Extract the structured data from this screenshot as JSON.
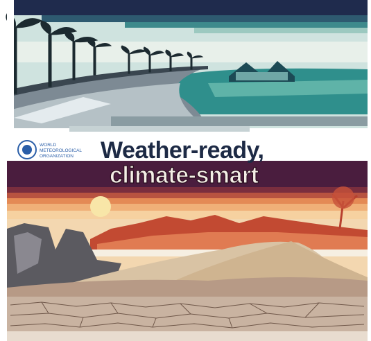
{
  "logo": {
    "lines": [
      "WORLD",
      "METEOROLOGICAL",
      "ORGANIZATION"
    ]
  },
  "title": {
    "line1": "Weather-ready,",
    "line2": "climate-smart"
  }
}
